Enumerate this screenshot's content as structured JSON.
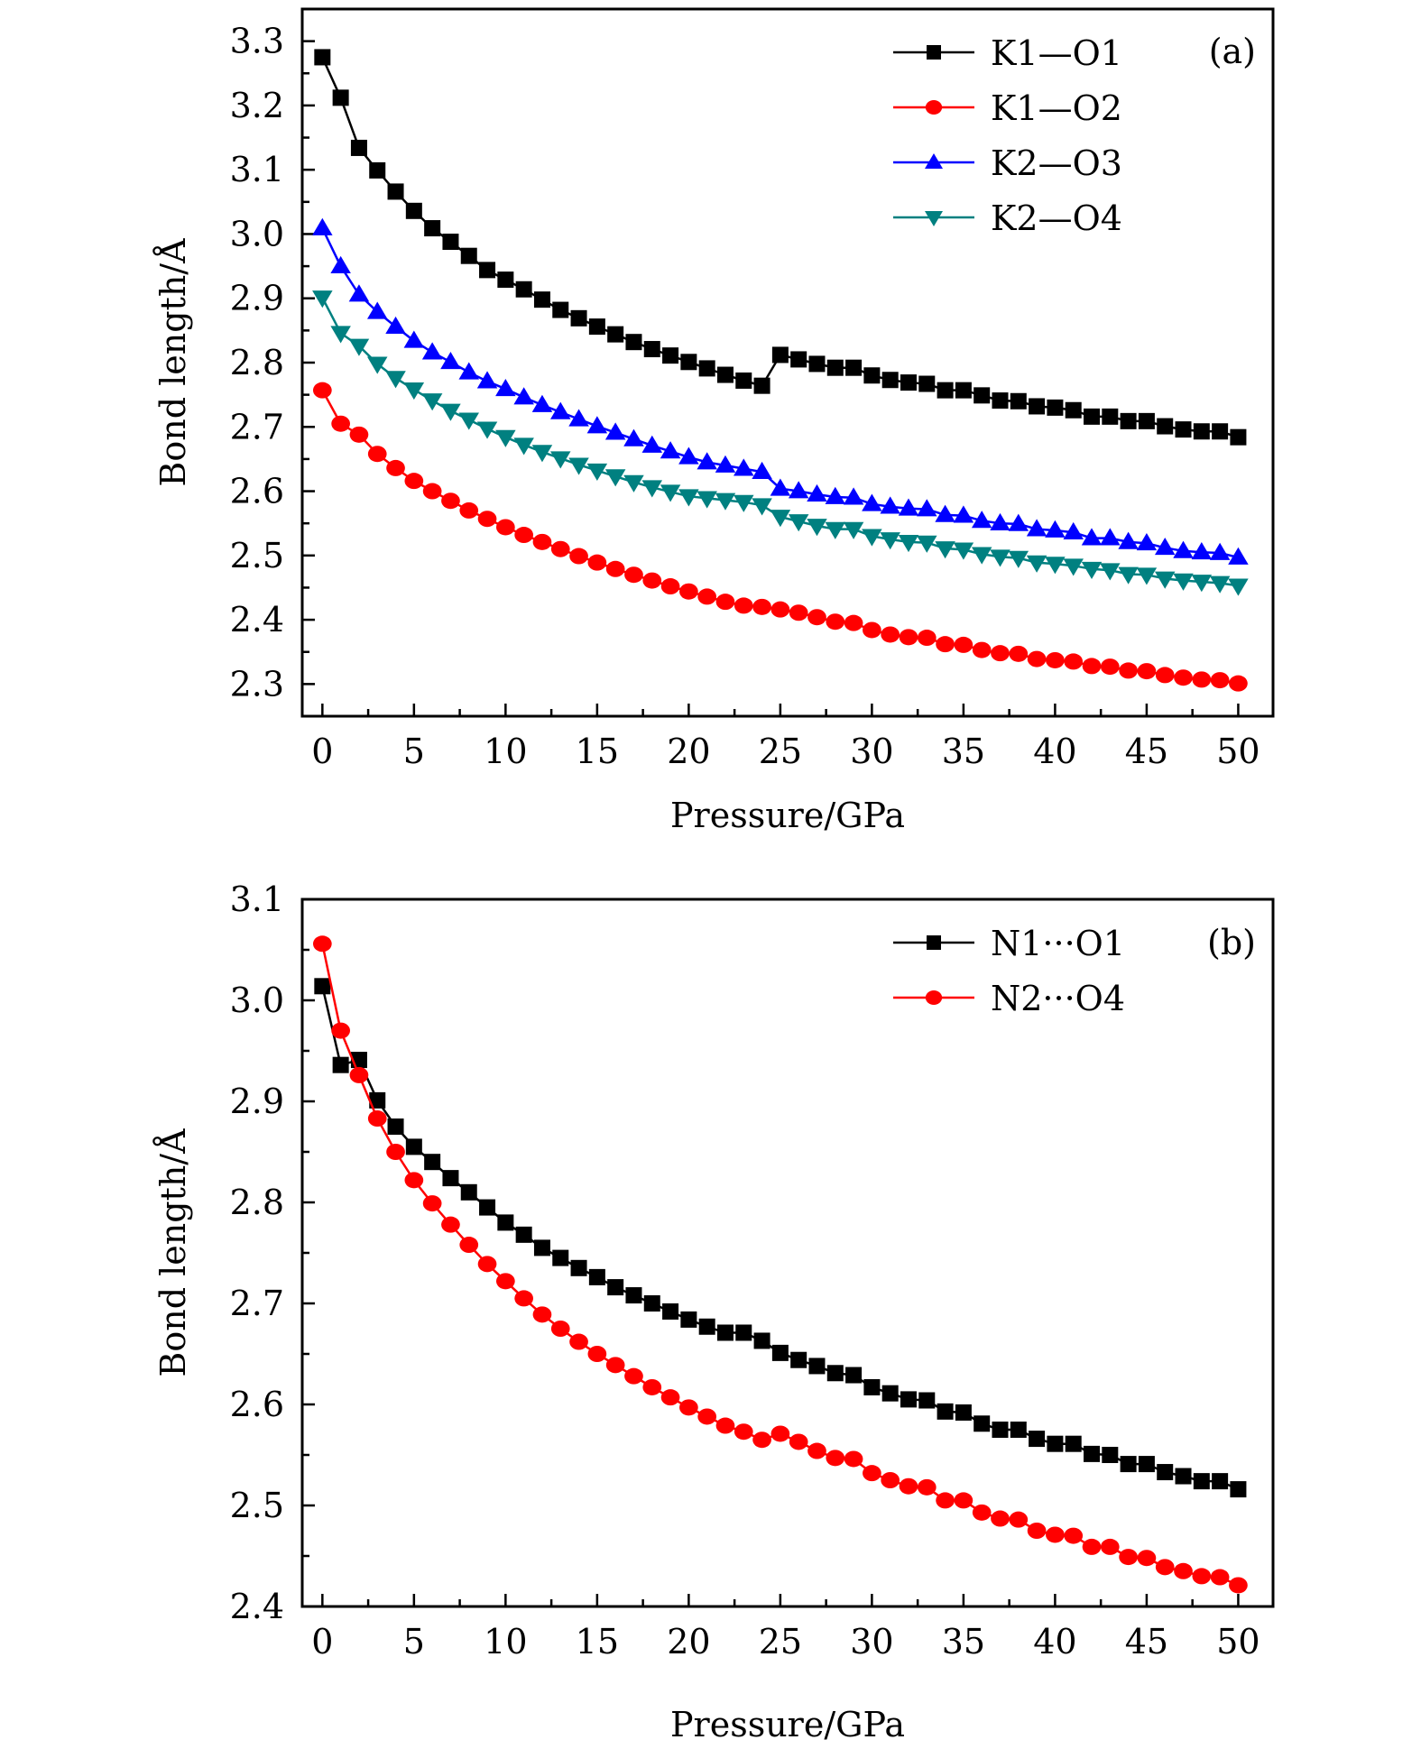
{
  "chart_data": [
    {
      "type": "line",
      "panel_label": "(a)",
      "title": "",
      "xlabel": "Pressure/GPa",
      "ylabel": "Bond length/Å",
      "xlim": [
        -1.1,
        51.9
      ],
      "ylim": [
        2.25,
        3.35
      ],
      "xticks": [
        0,
        5,
        10,
        15,
        20,
        25,
        30,
        35,
        40,
        45,
        50
      ],
      "xtick_labels": [
        "0",
        "5",
        "10",
        "15",
        "20",
        "25",
        "30",
        "35",
        "40",
        "45",
        "50"
      ],
      "yticks": [
        2.3,
        2.4,
        2.5,
        2.6,
        2.7,
        2.8,
        2.9,
        3.0,
        3.1,
        3.2,
        3.3
      ],
      "ytick_labels": [
        "2.3",
        "2.4",
        "2.5",
        "2.6",
        "2.7",
        "2.8",
        "2.9",
        "3.0",
        "3.1",
        "3.2",
        "3.3"
      ],
      "grid": false,
      "legend_position": "top-right",
      "x": [
        0,
        1,
        2,
        3,
        4,
        5,
        6,
        7,
        8,
        9,
        10,
        11,
        12,
        13,
        14,
        15,
        16,
        17,
        18,
        19,
        20,
        21,
        22,
        23,
        24,
        25,
        26,
        27,
        28,
        29,
        30,
        31,
        32,
        33,
        34,
        35,
        36,
        37,
        38,
        39,
        40,
        41,
        42,
        43,
        44,
        45,
        46,
        47,
        48,
        49,
        50
      ],
      "series": [
        {
          "name": "K1—O1",
          "color": "#000000",
          "marker": "square",
          "values": [
            3.275,
            3.212,
            3.134,
            3.099,
            3.066,
            3.036,
            3.009,
            2.988,
            2.966,
            2.944,
            2.929,
            2.914,
            2.898,
            2.882,
            2.869,
            2.856,
            2.844,
            2.832,
            2.821,
            2.811,
            2.801,
            2.791,
            2.781,
            2.772,
            2.764,
            2.812,
            2.805,
            2.798,
            2.792,
            2.792,
            2.78,
            2.773,
            2.769,
            2.767,
            2.757,
            2.757,
            2.749,
            2.741,
            2.74,
            2.732,
            2.73,
            2.726,
            2.716,
            2.716,
            2.709,
            2.709,
            2.701,
            2.696,
            2.693,
            2.693,
            2.684
          ]
        },
        {
          "name": "K1—O2",
          "color": "#ff0000",
          "marker": "circle",
          "values": [
            2.757,
            2.705,
            2.688,
            2.658,
            2.636,
            2.616,
            2.6,
            2.585,
            2.57,
            2.557,
            2.544,
            2.532,
            2.521,
            2.51,
            2.499,
            2.489,
            2.479,
            2.47,
            2.461,
            2.452,
            2.444,
            2.436,
            2.428,
            2.422,
            2.42,
            2.416,
            2.411,
            2.404,
            2.397,
            2.395,
            2.384,
            2.377,
            2.373,
            2.372,
            2.362,
            2.361,
            2.353,
            2.348,
            2.347,
            2.339,
            2.337,
            2.335,
            2.328,
            2.327,
            2.321,
            2.32,
            2.314,
            2.31,
            2.307,
            2.306,
            2.301
          ]
        },
        {
          "name": "K2—O3",
          "color": "#0000ff",
          "marker": "triangle-up",
          "values": [
            3.009,
            2.95,
            2.906,
            2.879,
            2.856,
            2.834,
            2.816,
            2.801,
            2.785,
            2.771,
            2.759,
            2.746,
            2.734,
            2.723,
            2.712,
            2.701,
            2.691,
            2.681,
            2.671,
            2.662,
            2.653,
            2.645,
            2.64,
            2.635,
            2.63,
            2.604,
            2.6,
            2.595,
            2.591,
            2.59,
            2.58,
            2.576,
            2.573,
            2.572,
            2.563,
            2.562,
            2.554,
            2.55,
            2.549,
            2.541,
            2.539,
            2.536,
            2.527,
            2.527,
            2.521,
            2.519,
            2.512,
            2.507,
            2.505,
            2.504,
            2.497
          ]
        },
        {
          "name": "K2—O4",
          "color": "#008080",
          "marker": "triangle-down",
          "values": [
            2.901,
            2.846,
            2.826,
            2.798,
            2.776,
            2.758,
            2.741,
            2.725,
            2.711,
            2.697,
            2.684,
            2.672,
            2.661,
            2.651,
            2.641,
            2.632,
            2.623,
            2.614,
            2.606,
            2.599,
            2.592,
            2.589,
            2.586,
            2.583,
            2.578,
            2.56,
            2.553,
            2.546,
            2.541,
            2.541,
            2.53,
            2.525,
            2.521,
            2.52,
            2.511,
            2.509,
            2.502,
            2.498,
            2.496,
            2.489,
            2.487,
            2.484,
            2.479,
            2.477,
            2.471,
            2.47,
            2.464,
            2.461,
            2.459,
            2.457,
            2.453
          ]
        }
      ]
    },
    {
      "type": "line",
      "panel_label": "(b)",
      "title": "",
      "xlabel": "Pressure/GPa",
      "ylabel": "Bond length/Å",
      "xlim": [
        -1.1,
        51.9
      ],
      "ylim": [
        2.4,
        3.1
      ],
      "xticks": [
        0,
        5,
        10,
        15,
        20,
        25,
        30,
        35,
        40,
        45,
        50
      ],
      "xtick_labels": [
        "0",
        "5",
        "10",
        "15",
        "20",
        "25",
        "30",
        "35",
        "40",
        "45",
        "50"
      ],
      "yticks": [
        2.4,
        2.5,
        2.6,
        2.7,
        2.8,
        2.9,
        3.0,
        3.1
      ],
      "ytick_labels": [
        "2.4",
        "2.5",
        "2.6",
        "2.7",
        "2.8",
        "2.9",
        "3.0",
        "3.1"
      ],
      "grid": false,
      "legend_position": "top-right",
      "x": [
        0,
        1,
        2,
        3,
        4,
        5,
        6,
        7,
        8,
        9,
        10,
        11,
        12,
        13,
        14,
        15,
        16,
        17,
        18,
        19,
        20,
        21,
        22,
        23,
        24,
        25,
        26,
        27,
        28,
        29,
        30,
        31,
        32,
        33,
        34,
        35,
        36,
        37,
        38,
        39,
        40,
        41,
        42,
        43,
        44,
        45,
        46,
        47,
        48,
        49,
        50
      ],
      "series": [
        {
          "name": "N1···O1",
          "color": "#000000",
          "marker": "square",
          "values": [
            3.014,
            2.936,
            2.941,
            2.901,
            2.875,
            2.855,
            2.84,
            2.824,
            2.81,
            2.795,
            2.78,
            2.768,
            2.755,
            2.745,
            2.735,
            2.726,
            2.716,
            2.708,
            2.7,
            2.692,
            2.684,
            2.677,
            2.671,
            2.671,
            2.663,
            2.651,
            2.644,
            2.638,
            2.631,
            2.629,
            2.617,
            2.611,
            2.605,
            2.604,
            2.593,
            2.592,
            2.581,
            2.575,
            2.575,
            2.566,
            2.561,
            2.561,
            2.551,
            2.55,
            2.541,
            2.541,
            2.533,
            2.529,
            2.524,
            2.524,
            2.516
          ]
        },
        {
          "name": "N2···O4",
          "color": "#ff0000",
          "marker": "circle",
          "values": [
            3.056,
            2.97,
            2.926,
            2.883,
            2.85,
            2.822,
            2.799,
            2.778,
            2.758,
            2.739,
            2.722,
            2.705,
            2.689,
            2.675,
            2.662,
            2.65,
            2.639,
            2.628,
            2.617,
            2.607,
            2.597,
            2.588,
            2.579,
            2.573,
            2.565,
            2.571,
            2.563,
            2.554,
            2.547,
            2.546,
            2.532,
            2.525,
            2.519,
            2.518,
            2.505,
            2.505,
            2.493,
            2.487,
            2.486,
            2.475,
            2.471,
            2.47,
            2.459,
            2.459,
            2.449,
            2.448,
            2.439,
            2.435,
            2.43,
            2.429,
            2.421
          ]
        }
      ]
    }
  ]
}
